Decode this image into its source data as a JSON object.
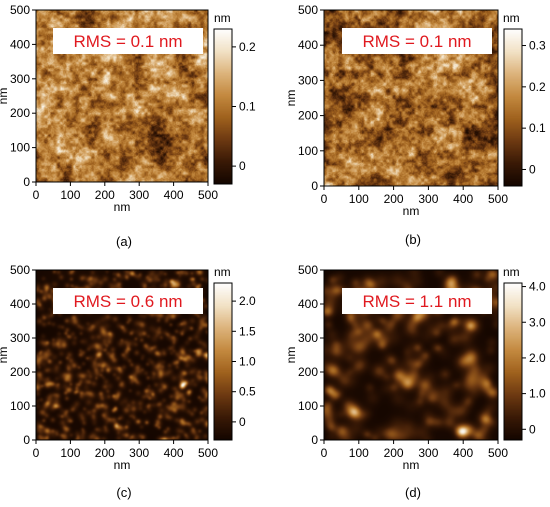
{
  "panels": [
    {
      "letter": "(a)",
      "rms": "RMS = 0.1 nm",
      "x_label": "nm",
      "y_label": "nm",
      "x_ticks": [
        "0",
        "100",
        "200",
        "300",
        "400",
        "500"
      ],
      "y_ticks": [
        "0",
        "100",
        "200",
        "300",
        "400",
        "500"
      ],
      "colorbar_unit": "nm",
      "colorbar_ticks": [
        "0.2",
        "0.1",
        "0"
      ],
      "colorbar_tick_values": [
        0.2,
        0.1,
        0
      ],
      "colorbar_range": [
        -0.03,
        0.23
      ],
      "texture": {
        "grain": "fine",
        "contrast": "low",
        "seed": 11
      }
    },
    {
      "letter": "(b)",
      "rms": "RMS = 0.1 nm",
      "x_label": "nm",
      "y_label": "nm",
      "x_ticks": [
        "0",
        "100",
        "200",
        "300",
        "400",
        "500"
      ],
      "y_ticks": [
        "0",
        "100",
        "200",
        "300",
        "400",
        "500"
      ],
      "colorbar_unit": "nm",
      "colorbar_ticks": [
        "0.3",
        "0.2",
        "0.1",
        "0"
      ],
      "colorbar_tick_values": [
        0.3,
        0.2,
        0.1,
        0
      ],
      "colorbar_range": [
        -0.04,
        0.34
      ],
      "texture": {
        "grain": "fine",
        "contrast": "medium",
        "seed": 23
      }
    },
    {
      "letter": "(c)",
      "rms": "RMS = 0.6 nm",
      "x_label": "nm",
      "y_label": "nm",
      "x_ticks": [
        "0",
        "100",
        "200",
        "300",
        "400",
        "500"
      ],
      "y_ticks": [
        "0",
        "100",
        "200",
        "300",
        "400",
        "500"
      ],
      "colorbar_unit": "nm",
      "colorbar_ticks": [
        "2.0",
        "1.5",
        "1.0",
        "0.5",
        "0"
      ],
      "colorbar_tick_values": [
        2.0,
        1.5,
        1.0,
        0.5,
        0
      ],
      "colorbar_range": [
        -0.3,
        2.3
      ],
      "texture": {
        "grain": "dense-granular",
        "contrast": "medium",
        "seed": 37
      }
    },
    {
      "letter": "(d)",
      "rms": "RMS = 1.1 nm",
      "x_label": "nm",
      "y_label": "nm",
      "x_ticks": [
        "0",
        "100",
        "200",
        "300",
        "400",
        "500"
      ],
      "y_ticks": [
        "0",
        "100",
        "200",
        "300",
        "400",
        "500"
      ],
      "colorbar_unit": "nm",
      "colorbar_ticks": [
        "4.0",
        "3.0",
        "2.0",
        "1.0",
        "0"
      ],
      "colorbar_tick_values": [
        4.0,
        3.0,
        2.0,
        1.0,
        0
      ],
      "colorbar_range": [
        -0.3,
        4.1
      ],
      "texture": {
        "grain": "coarse-grains",
        "contrast": "high",
        "seed": 53
      }
    }
  ],
  "colormap": [
    "#140600",
    "#3a1a06",
    "#6e3a12",
    "#a0621e",
    "#c48a40",
    "#ddb47c",
    "#f2e2c6",
    "#ffffff"
  ],
  "rms_color": "#e0191f"
}
